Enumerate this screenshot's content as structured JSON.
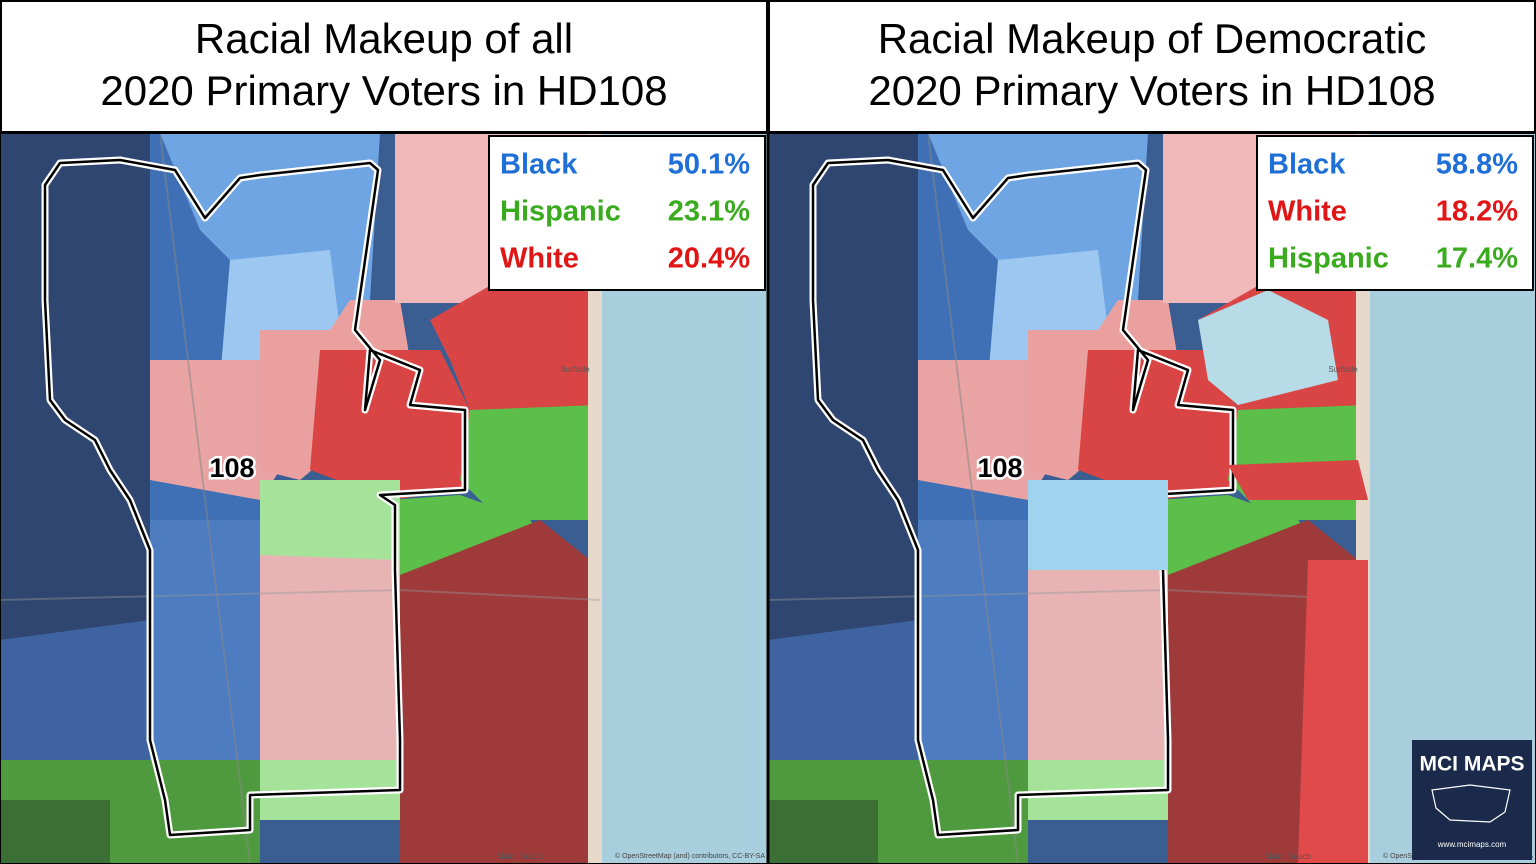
{
  "panels": [
    {
      "title": [
        "Racial Makeup of all",
        "2020 Primary Voters in HD108"
      ],
      "legend": [
        {
          "group": "Black",
          "share": "50.1%",
          "color": "#1f6fd8"
        },
        {
          "group": "Hispanic",
          "share": "23.1%",
          "color": "#3aab1e"
        },
        {
          "group": "White",
          "share": "20.4%",
          "color": "#e01515"
        }
      ],
      "district_label": "108",
      "places": [
        "Surfside",
        "Miami Beach"
      ],
      "attribution": "© OpenStreetMap (and) contributors, CC-BY-SA"
    },
    {
      "title": [
        "Racial Makeup of Democratic",
        "2020 Primary Voters in HD108"
      ],
      "legend": [
        {
          "group": "Black",
          "share": "58.8%",
          "color": "#1f6fd8"
        },
        {
          "group": "White",
          "share": "18.2%",
          "color": "#e01515"
        },
        {
          "group": "Hispanic",
          "share": "17.4%",
          "color": "#3aab1e"
        }
      ],
      "district_label": "108",
      "places": [
        "Surfside",
        "Miami Beach"
      ],
      "attribution": "© OpenStreetMap (and) contributors, CC-BY-SA"
    }
  ],
  "logo": {
    "title": "MCI MAPS",
    "url": "www.mcimaps.com"
  }
}
